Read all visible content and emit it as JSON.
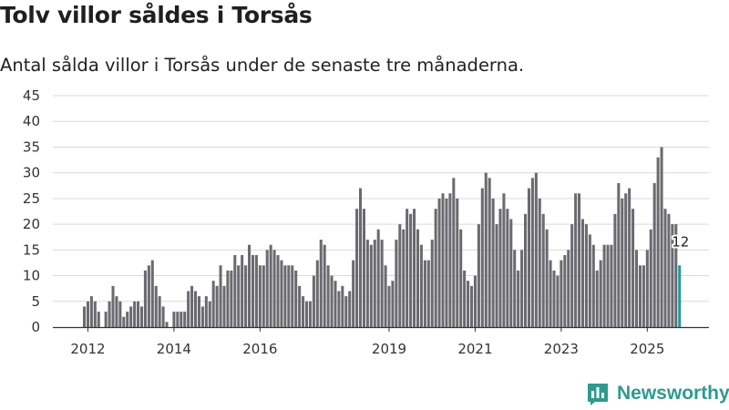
{
  "title": "Tolv villor såldes i Torsås",
  "subtitle": "Antal sålda villor i Torsås under de senaste tre månaderna.",
  "brand": {
    "name": "Newsworthy",
    "color": "#2f9a8e",
    "icon": "newsworthy-logo-icon"
  },
  "colors": {
    "bar": "#6b6a70",
    "highlight": "#1f9c94",
    "grid": "#d9d9d9",
    "axis": "#333333"
  },
  "chart_data": {
    "type": "bar",
    "title": "Tolv villor såldes i Torsås",
    "xlabel": "",
    "ylabel": "",
    "ylim": [
      0,
      45
    ],
    "yticks": [
      0,
      5,
      10,
      15,
      20,
      25,
      30,
      35,
      40,
      45
    ],
    "grid": true,
    "x_ticks": [
      {
        "label": "2012",
        "month_index": 1
      },
      {
        "label": "2014",
        "month_index": 25
      },
      {
        "label": "2016",
        "month_index": 49
      },
      {
        "label": "2019",
        "month_index": 85
      },
      {
        "label": "2021",
        "month_index": 109
      },
      {
        "label": "2023",
        "month_index": 133
      },
      {
        "label": "2025",
        "month_index": 157
      }
    ],
    "start": "2011-12",
    "period": "monthly, rolling three-month total",
    "values": [
      4,
      5,
      6,
      5,
      3,
      0,
      3,
      5,
      8,
      6,
      5,
      2,
      3,
      4,
      5,
      5,
      4,
      11,
      12,
      13,
      8,
      6,
      4,
      1,
      0,
      3,
      3,
      3,
      3,
      7,
      8,
      7,
      6,
      4,
      6,
      5,
      9,
      8,
      12,
      8,
      11,
      11,
      14,
      12,
      14,
      12,
      16,
      14,
      14,
      12,
      12,
      15,
      16,
      15,
      14,
      13,
      12,
      12,
      12,
      11,
      8,
      6,
      5,
      5,
      10,
      13,
      17,
      16,
      12,
      10,
      9,
      7,
      8,
      6,
      7,
      13,
      23,
      27,
      23,
      17,
      16,
      17,
      19,
      17,
      12,
      8,
      9,
      17,
      20,
      19,
      23,
      22,
      23,
      19,
      16,
      13,
      13,
      17,
      23,
      25,
      26,
      25,
      26,
      29,
      25,
      19,
      11,
      9,
      8,
      10,
      20,
      27,
      30,
      29,
      25,
      20,
      23,
      26,
      23,
      21,
      15,
      11,
      15,
      22,
      27,
      29,
      30,
      25,
      22,
      19,
      13,
      11,
      10,
      13,
      14,
      15,
      20,
      26,
      26,
      21,
      20,
      18,
      16,
      11,
      13,
      16,
      16,
      16,
      22,
      28,
      25,
      26,
      27,
      23,
      15,
      12,
      12,
      15,
      19,
      28,
      33,
      35,
      23,
      22,
      20,
      20,
      12
    ],
    "highlight_last": true,
    "annotations": [
      {
        "label": "12",
        "month_index": 166
      }
    ]
  }
}
